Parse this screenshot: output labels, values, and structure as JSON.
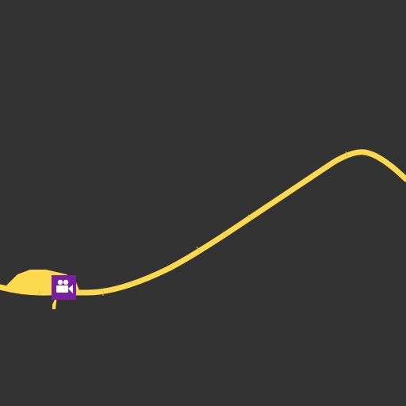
{
  "map": {
    "background": "#333333",
    "road_color": "#fcd94e",
    "road_edge_color": "#e3bf3c",
    "marker": {
      "icon": "movie-camera-icon",
      "category": "cinema",
      "color": "#7b1fa2",
      "icon_color": "#ffffff"
    }
  }
}
